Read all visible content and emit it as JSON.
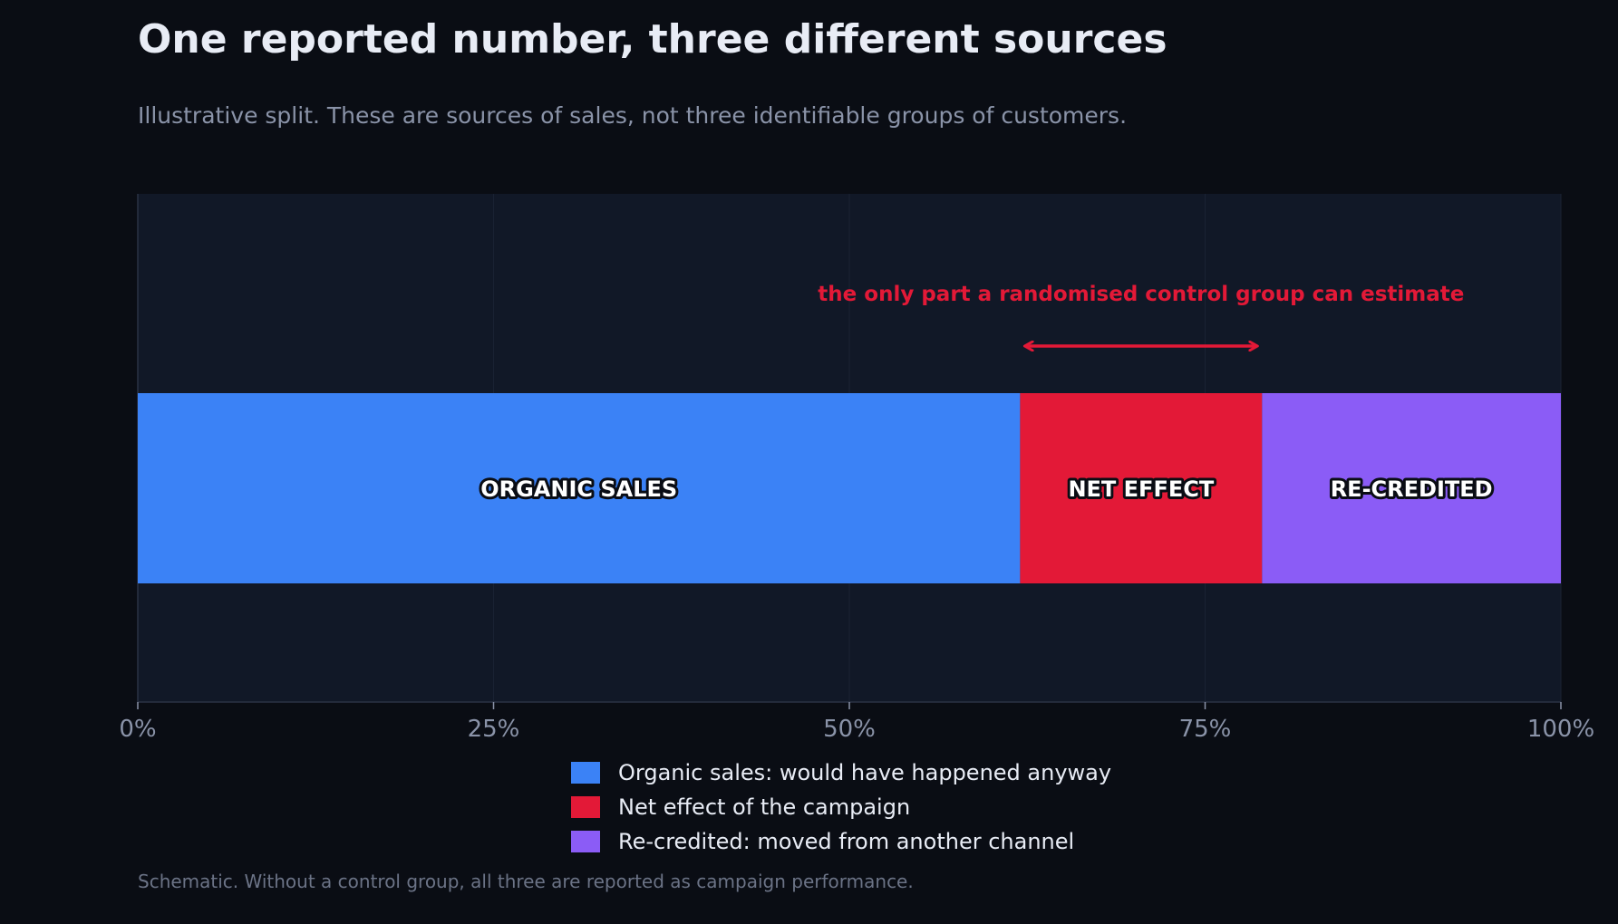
{
  "title": "One reported number, three different sources",
  "subtitle": "Illustrative split. These are sources of sales, not three identifiable groups of customers.",
  "footnote": "Schematic. Without a control group, all three are reported as campaign performance.",
  "colors": {
    "background": "#0a0d14",
    "plot_background": "#111827",
    "organic": "#3b82f6",
    "net_effect": "#e31937",
    "recredited": "#8b5cf6",
    "annotation": "#e31937"
  },
  "chart_data": {
    "type": "bar",
    "orientation": "horizontal-stacked",
    "xlim": [
      0,
      100
    ],
    "x_unit": "%",
    "ticks": [
      0,
      25,
      50,
      75,
      100
    ],
    "tick_labels": [
      "0%",
      "25%",
      "50%",
      "75%",
      "100%"
    ],
    "grid": true,
    "legend_position": "bottom-center",
    "segments": [
      {
        "key": "organic",
        "label": "ORGANIC SALES",
        "legend": "Organic sales: would have happened anyway",
        "value": 62,
        "color": "#3b82f6"
      },
      {
        "key": "net_effect",
        "label": "NET EFFECT",
        "legend": "Net effect of the campaign",
        "value": 17,
        "color": "#e31937"
      },
      {
        "key": "recredited",
        "label": "RE-CREDITED",
        "legend": "Re-credited: moved from another channel",
        "value": 21,
        "color": "#8b5cf6"
      }
    ],
    "annotation": {
      "text": "the only part a randomised control group can estimate",
      "target_segment": "net_effect"
    }
  }
}
